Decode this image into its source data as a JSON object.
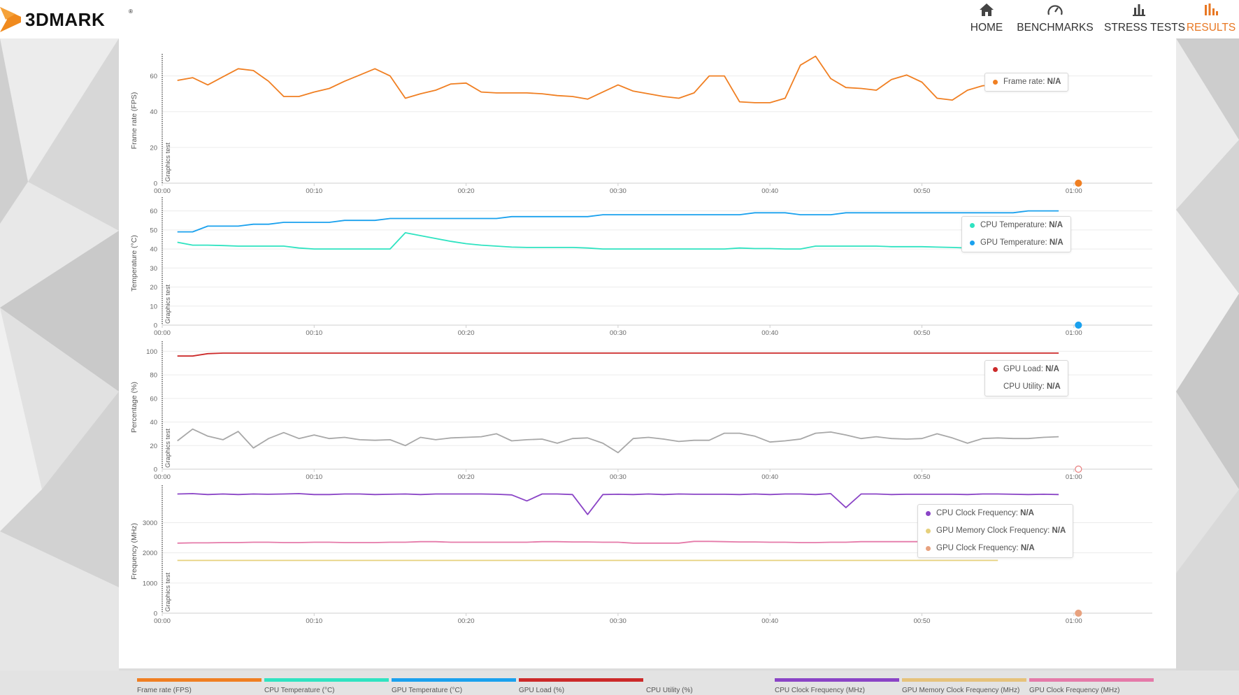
{
  "app": {
    "logo_text": "3DMARK",
    "logo_mark": "®"
  },
  "nav": [
    {
      "label": "HOME",
      "icon": "home-icon",
      "active": false
    },
    {
      "label": "BENCHMARKS",
      "icon": "speedometer-icon",
      "active": false
    },
    {
      "label": "STRESS TESTS",
      "icon": "stress-bars-icon",
      "active": false
    },
    {
      "label": "RESULTS",
      "icon": "results-bars-icon",
      "active": true
    }
  ],
  "colors": {
    "accent": "#e87722",
    "frame_rate": "#f07f22",
    "cpu_temp": "#2fe3c1",
    "gpu_temp": "#1aa1ee",
    "gpu_load": "#cc2a2a",
    "cpu_util": "#a8a8a8",
    "cpu_clock": "#8a44c6",
    "gpu_mem_clock": "#e6d07c",
    "gpu_clock": "#e57aa9"
  },
  "marker_label": "Graphics test",
  "legends": {
    "fps": [
      {
        "name": "Frame rate:",
        "value": "N/A",
        "color": "#f07f22"
      }
    ],
    "temp": [
      {
        "name": "CPU Temperature:",
        "value": "N/A",
        "color": "#2fe3c1"
      },
      {
        "name": "GPU Temperature:",
        "value": "N/A",
        "color": "#1aa1ee"
      }
    ],
    "pct": [
      {
        "name": "GPU Load:",
        "value": "N/A",
        "color": "#cc2a2a"
      },
      {
        "name": "CPU Utility:",
        "value": "N/A",
        "color": ""
      }
    ],
    "freq": [
      {
        "name": "CPU Clock Frequency:",
        "value": "N/A",
        "color": "#8a44c6"
      },
      {
        "name": "GPU Memory Clock Frequency:",
        "value": "N/A",
        "color": "#e6d07c"
      },
      {
        "name": "GPU Clock Frequency:",
        "value": "N/A",
        "color": "#e8a27f"
      }
    ]
  },
  "bottom_legend": [
    {
      "label": "Frame rate (FPS)",
      "color": "#f07f22"
    },
    {
      "label": "CPU Temperature (°C)",
      "color": "#2fe3c1"
    },
    {
      "label": "GPU Temperature (°C)",
      "color": "#1aa1ee"
    },
    {
      "label": "GPU Load (%)",
      "color": "#cc2a2a"
    },
    {
      "label": "CPU Utility (%)",
      "color": ""
    },
    {
      "label": "CPU Clock Frequency (MHz)",
      "color": "#8a44c6"
    },
    {
      "label": "GPU Memory Clock Frequency (MHz)",
      "color": "#e6c27a"
    },
    {
      "label": "GPU Clock Frequency (MHz)",
      "color": "#e57aa9"
    }
  ],
  "chart_data": [
    {
      "type": "line",
      "ylabel": "Frame rate (FPS)",
      "ylim": [
        0,
        70
      ],
      "yticks": [
        0,
        20,
        40,
        60
      ],
      "x_ticks": [
        "00:00",
        "00:10",
        "00:20",
        "00:30",
        "00:40",
        "00:50",
        "01:00"
      ],
      "x": [
        1,
        2,
        3,
        4,
        5,
        6,
        7,
        8,
        9,
        10,
        11,
        12,
        13,
        14,
        15,
        16,
        17,
        18,
        19,
        20,
        21,
        22,
        23,
        24,
        25,
        26,
        27,
        28,
        29,
        30,
        31,
        32,
        33,
        34,
        35,
        36,
        37,
        38,
        39,
        40,
        41,
        42,
        43,
        44,
        45,
        46,
        47,
        48,
        49,
        50,
        51,
        52,
        53,
        54,
        55,
        56
      ],
      "series": [
        {
          "name": "Frame rate",
          "color": "#f07f22",
          "values": [
            57.5,
            59,
            55,
            59.5,
            64,
            63,
            57,
            48.5,
            48.5,
            51,
            53,
            57,
            60.5,
            64,
            60,
            47.5,
            50,
            52,
            55.5,
            56,
            51,
            50.5,
            50.5,
            50.5,
            50,
            49,
            48.5,
            47,
            51,
            55,
            51.5,
            50,
            48.5,
            47.5,
            50.5,
            60,
            60,
            45.5,
            45,
            45,
            47.5,
            66,
            71,
            58.5,
            53.5,
            53,
            52,
            58,
            60.5,
            56.5,
            47.5,
            46.5,
            52,
            54.5,
            55,
            53
          ]
        }
      ],
      "end_marker": {
        "x": 60.3,
        "y": 0,
        "color": "#f07f22",
        "filled": true
      }
    },
    {
      "type": "line",
      "ylabel": "Temperature (°C)",
      "ylim": [
        0,
        65
      ],
      "yticks": [
        0,
        10,
        20,
        30,
        40,
        50,
        60
      ],
      "x_ticks": [
        "00:00",
        "00:10",
        "00:20",
        "00:30",
        "00:40",
        "00:50",
        "01:00"
      ],
      "series": [
        {
          "name": "GPU Temperature",
          "color": "#1aa1ee",
          "x": [
            1,
            2,
            3,
            4,
            5,
            6,
            7,
            8,
            9,
            10,
            11,
            12,
            13,
            14,
            15,
            16,
            17,
            18,
            19,
            20,
            21,
            22,
            23,
            24,
            25,
            26,
            27,
            28,
            29,
            30,
            31,
            32,
            33,
            34,
            35,
            36,
            37,
            38,
            39,
            40,
            41,
            42,
            43,
            44,
            45,
            46,
            47,
            48,
            49,
            50,
            51,
            52,
            53,
            54,
            55,
            56,
            57,
            58,
            59
          ],
          "values": [
            49,
            49,
            52,
            52,
            52,
            53,
            53,
            54,
            54,
            54,
            54,
            55,
            55,
            55,
            56,
            56,
            56,
            56,
            56,
            56,
            56,
            56,
            57,
            57,
            57,
            57,
            57,
            57,
            58,
            58,
            58,
            58,
            58,
            58,
            58,
            58,
            58,
            58,
            59,
            59,
            59,
            58,
            58,
            58,
            59,
            59,
            59,
            59,
            59,
            59,
            59,
            59,
            59,
            59,
            59,
            59,
            60,
            60,
            60
          ]
        },
        {
          "name": "CPU Temperature",
          "color": "#2fe3c1",
          "x": [
            1,
            2,
            3,
            4,
            5,
            6,
            7,
            8,
            9,
            10,
            11,
            12,
            13,
            14,
            15,
            16,
            17,
            18,
            19,
            20,
            21,
            22,
            23,
            24,
            25,
            26,
            27,
            28,
            29,
            30,
            31,
            32,
            33,
            34,
            35,
            36,
            37,
            38,
            39,
            40,
            41,
            42,
            43,
            44,
            45,
            46,
            47,
            48,
            49,
            50,
            51,
            52,
            53,
            54,
            55
          ],
          "values": [
            43.5,
            42,
            42,
            41.8,
            41.5,
            41.5,
            41.5,
            41.5,
            40.5,
            40,
            40,
            40,
            40,
            40,
            40,
            48.5,
            47,
            45.5,
            44,
            42.8,
            42,
            41.5,
            41,
            40.8,
            40.8,
            40.8,
            40.8,
            40.5,
            40,
            40,
            40,
            40,
            40,
            40,
            40,
            40,
            40,
            40.5,
            40.2,
            40.2,
            40,
            40,
            41.5,
            41.5,
            41.5,
            41.5,
            41.5,
            41.2,
            41.2,
            41.2,
            41,
            40.8,
            40.5,
            40.2,
            40
          ]
        }
      ],
      "end_marker": {
        "x": 60.3,
        "y": 0,
        "color": "#1aa1ee",
        "filled": true
      }
    },
    {
      "type": "line",
      "ylabel": "Percentage (%)",
      "ylim": [
        0,
        105
      ],
      "yticks": [
        0,
        20,
        40,
        60,
        80,
        100
      ],
      "x_ticks": [
        "00:00",
        "00:10",
        "00:20",
        "00:30",
        "00:40",
        "00:50",
        "01:00"
      ],
      "series": [
        {
          "name": "GPU Load",
          "color": "#cc2a2a",
          "x": [
            1,
            2,
            3,
            4,
            5,
            59
          ],
          "values": [
            96,
            96,
            98,
            98.5,
            98.5,
            98.5
          ]
        },
        {
          "name": "CPU Utility",
          "color": "#a8a8a8",
          "x": [
            1,
            2,
            3,
            4,
            5,
            6,
            7,
            8,
            9,
            10,
            11,
            12,
            13,
            14,
            15,
            16,
            17,
            18,
            19,
            20,
            21,
            22,
            23,
            24,
            25,
            26,
            27,
            28,
            29,
            30,
            31,
            32,
            33,
            34,
            35,
            36,
            37,
            38,
            39,
            40,
            41,
            42,
            43,
            44,
            45,
            46,
            47,
            48,
            49,
            50,
            51,
            52,
            53,
            54,
            55,
            56,
            57,
            58,
            59
          ],
          "values": [
            24,
            34,
            28,
            25,
            32,
            18,
            26,
            31,
            26,
            29,
            26,
            27,
            25,
            24.5,
            25,
            20,
            27,
            25,
            26.5,
            27,
            27.5,
            30,
            24,
            25,
            25.5,
            22,
            26,
            26.5,
            22,
            14,
            26,
            27,
            25.5,
            23.5,
            24.5,
            24.5,
            30.5,
            30.5,
            28,
            23,
            24,
            25.5,
            30.5,
            31.5,
            29,
            26,
            27.5,
            26,
            25.5,
            26,
            30,
            26.5,
            22,
            26,
            26.5,
            26,
            26,
            27,
            27.5
          ]
        }
      ],
      "end_marker": {
        "x": 60.3,
        "y": 0,
        "color": "#e87c7c",
        "filled": false
      }
    },
    {
      "type": "line",
      "ylabel": "Frequency (MHz)",
      "ylim": [
        0,
        4100
      ],
      "yticks": [
        0,
        1000,
        2000,
        3000
      ],
      "x_ticks": [
        "00:00",
        "00:10",
        "00:20",
        "00:30",
        "00:40",
        "00:50",
        "01:00"
      ],
      "series": [
        {
          "name": "CPU Clock Frequency",
          "color": "#8a44c6",
          "x": [
            1,
            2,
            3,
            4,
            5,
            6,
            7,
            8,
            9,
            10,
            11,
            12,
            13,
            14,
            15,
            16,
            17,
            18,
            19,
            20,
            21,
            22,
            23,
            24,
            25,
            26,
            27,
            28,
            29,
            30,
            31,
            32,
            33,
            34,
            35,
            36,
            37,
            38,
            39,
            40,
            41,
            42,
            43,
            44,
            45,
            46,
            47,
            48,
            49,
            50,
            51,
            52,
            53,
            54,
            55,
            56,
            57,
            58,
            59
          ],
          "values": [
            3950,
            3960,
            3930,
            3950,
            3930,
            3950,
            3940,
            3950,
            3960,
            3930,
            3930,
            3950,
            3950,
            3930,
            3940,
            3950,
            3930,
            3950,
            3950,
            3950,
            3950,
            3940,
            3920,
            3720,
            3950,
            3950,
            3930,
            3270,
            3930,
            3940,
            3930,
            3950,
            3930,
            3950,
            3940,
            3940,
            3940,
            3930,
            3950,
            3930,
            3950,
            3950,
            3930,
            3960,
            3500,
            3950,
            3950,
            3930,
            3940,
            3940,
            3940,
            3940,
            3930,
            3950,
            3950,
            3940,
            3930,
            3940,
            3930
          ]
        },
        {
          "name": "GPU Clock Frequency",
          "color": "#e57aa9",
          "x": [
            1,
            2,
            3,
            4,
            5,
            6,
            7,
            8,
            9,
            10,
            11,
            12,
            13,
            14,
            15,
            16,
            17,
            18,
            19,
            20,
            21,
            22,
            23,
            24,
            25,
            26,
            27,
            28,
            29,
            30,
            31,
            32,
            33,
            34,
            35,
            36,
            37,
            38,
            39,
            40,
            41,
            42,
            43,
            44,
            45,
            46,
            47,
            48,
            49,
            50,
            51,
            52,
            53,
            54,
            55
          ],
          "values": [
            2320,
            2330,
            2330,
            2340,
            2340,
            2350,
            2350,
            2340,
            2340,
            2350,
            2350,
            2340,
            2340,
            2340,
            2350,
            2350,
            2370,
            2370,
            2350,
            2350,
            2350,
            2350,
            2350,
            2350,
            2370,
            2370,
            2360,
            2360,
            2350,
            2350,
            2320,
            2320,
            2320,
            2320,
            2380,
            2380,
            2370,
            2360,
            2360,
            2350,
            2350,
            2340,
            2340,
            2350,
            2350,
            2370,
            2370,
            2370,
            2370,
            2370,
            2370,
            2370,
            2370,
            2370,
            2370
          ]
        },
        {
          "name": "GPU Memory Clock Frequency",
          "color": "#e6d07c",
          "x": [
            1,
            55
          ],
          "values": [
            1750,
            1750
          ]
        }
      ],
      "end_marker": {
        "x": 60.3,
        "y": 0,
        "color": "#e8a27f",
        "filled": true
      }
    }
  ]
}
